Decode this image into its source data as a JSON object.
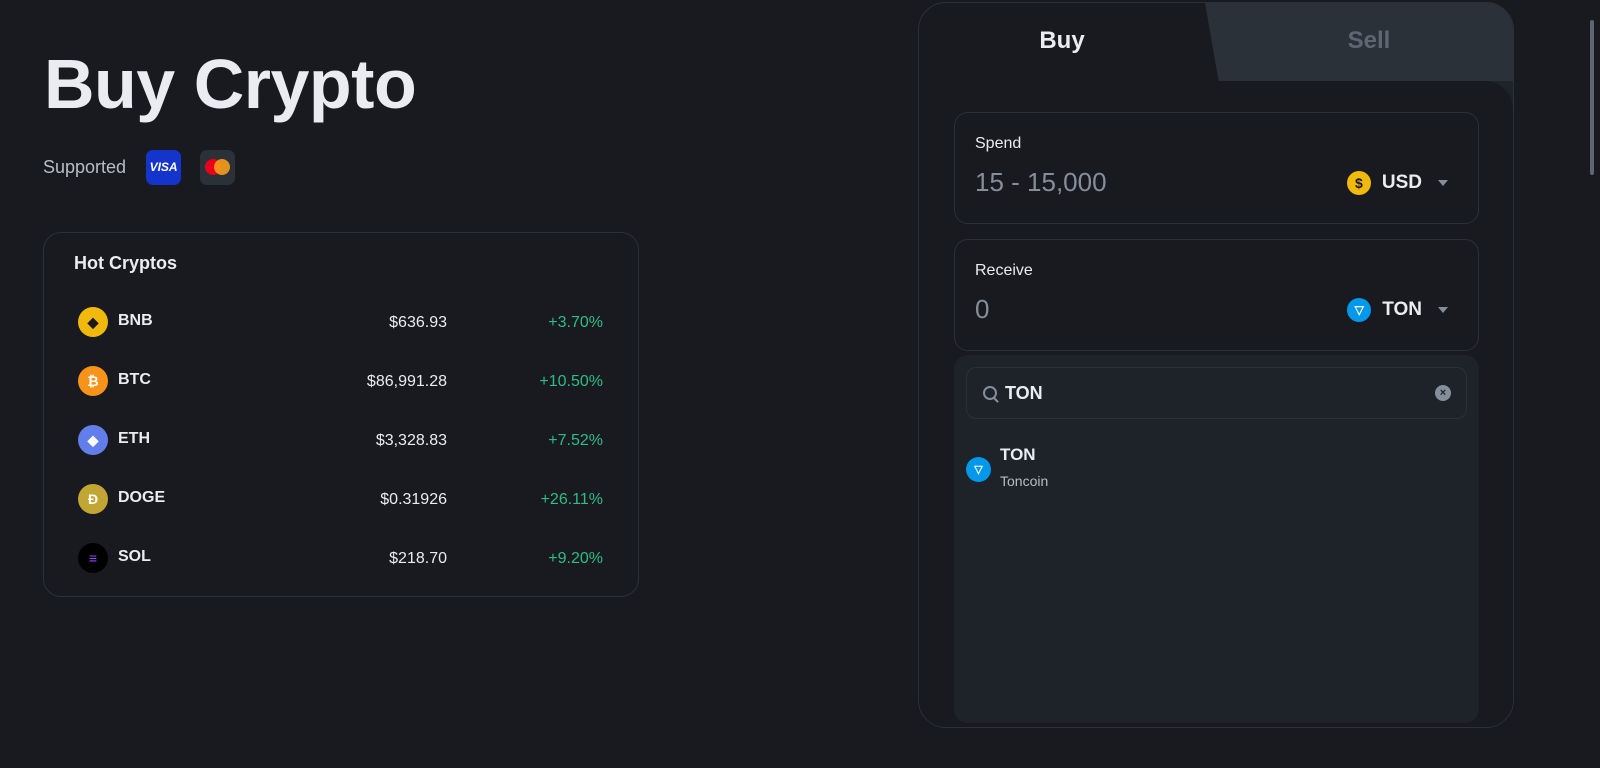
{
  "page": {
    "title": "Buy Crypto",
    "supported_label": "Supported"
  },
  "payment_methods": [
    {
      "name": "VISA",
      "icon": "visa-icon"
    },
    {
      "name": "Mastercard",
      "icon": "mastercard-icon"
    }
  ],
  "hot": {
    "title": "Hot Cryptos",
    "items": [
      {
        "symbol": "BNB",
        "price": "$636.93",
        "change": "+3.70%",
        "color": "#f0b90b",
        "glyph": "◆"
      },
      {
        "symbol": "BTC",
        "price": "$86,991.28",
        "change": "+10.50%",
        "color": "#f7931a",
        "glyph": "₿"
      },
      {
        "symbol": "ETH",
        "price": "$3,328.83",
        "change": "+7.52%",
        "color": "#627eea",
        "glyph": "◆"
      },
      {
        "symbol": "DOGE",
        "price": "$0.31926",
        "change": "+26.11%",
        "color": "#c2a633",
        "glyph": "Ð"
      },
      {
        "symbol": "SOL",
        "price": "$218.70",
        "change": "+9.20%",
        "color": "#000000",
        "glyph": "≡"
      }
    ]
  },
  "trade": {
    "tabs": {
      "buy": "Buy",
      "sell": "Sell"
    },
    "spend": {
      "label": "Spend",
      "value": "15 - 15,000",
      "currency": "USD",
      "icon_glyph": "$"
    },
    "receive": {
      "label": "Receive",
      "value": "0",
      "currency": "TON",
      "icon_glyph": "▽"
    },
    "search": {
      "value": "TON"
    },
    "result": {
      "symbol": "TON",
      "name": "Toncoin",
      "icon_glyph": "▽"
    }
  },
  "colors": {
    "background": "#181a20",
    "positive": "#2ebd85",
    "accent": "#f0b90b"
  }
}
